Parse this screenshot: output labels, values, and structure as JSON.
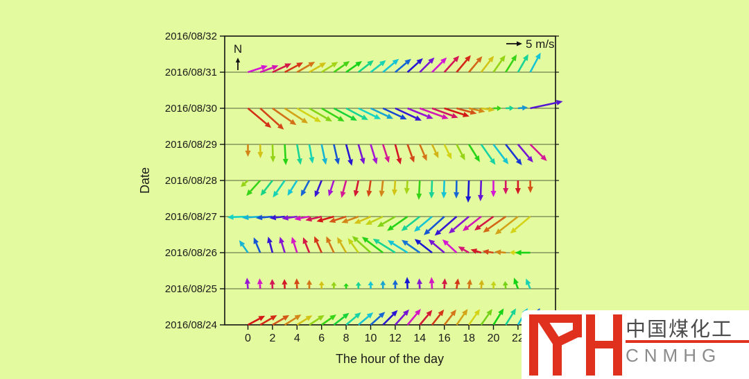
{
  "figure": {
    "background_color": "#e4fa9e",
    "frame_color": "#111111",
    "gridline_color": "#55603f",
    "text_color": "#1a1a1a",
    "x_axis": {
      "title": "The hour of the day",
      "ticks": [
        0,
        2,
        4,
        6,
        8,
        10,
        12,
        14,
        16,
        18,
        20,
        22
      ]
    },
    "y_axis": {
      "title": "Date",
      "labels": [
        "2016/08/32",
        "2016/08/31",
        "2016/08/30",
        "2016/08/29",
        "2016/08/28",
        "2016/08/27",
        "2016/08/26",
        "2016/08/25",
        "2016/08/24"
      ]
    },
    "north_label": "N",
    "legend_label": "5 m/s"
  },
  "chart_data": {
    "type": "quiver",
    "title": "",
    "xlabel": "The hour of the day",
    "ylabel": "Date",
    "x_hours": [
      0,
      23
    ],
    "legend": "arrow length scale: 5 m/s",
    "note": "each triplet is [direction_deg_ccw_from_east, length_px, hue_deg]; one arrow per hour 0-23, tail anchored on the date line",
    "rows": [
      {
        "date": "2016/08/31",
        "arrows": [
          [
            18,
            30,
            300
          ],
          [
            20,
            28,
            310
          ],
          [
            25,
            30,
            345
          ],
          [
            28,
            30,
            10
          ],
          [
            30,
            30,
            30
          ],
          [
            30,
            28,
            55
          ],
          [
            32,
            28,
            75
          ],
          [
            35,
            28,
            105
          ],
          [
            35,
            28,
            120
          ],
          [
            38,
            28,
            155
          ],
          [
            38,
            28,
            170
          ],
          [
            40,
            30,
            185
          ],
          [
            40,
            30,
            215
          ],
          [
            42,
            30,
            245
          ],
          [
            45,
            30,
            270
          ],
          [
            45,
            30,
            300
          ],
          [
            48,
            32,
            340
          ],
          [
            50,
            32,
            5
          ],
          [
            50,
            30,
            25
          ],
          [
            52,
            30,
            55
          ],
          [
            55,
            30,
            80
          ],
          [
            58,
            30,
            110
          ],
          [
            60,
            30,
            160
          ],
          [
            62,
            32,
            185
          ]
        ]
      },
      {
        "date": "2016/08/30",
        "arrows": [
          [
            320,
            44,
            8
          ],
          [
            318,
            46,
            15
          ],
          [
            325,
            42,
            28
          ],
          [
            327,
            40,
            45
          ],
          [
            330,
            40,
            60
          ],
          [
            330,
            38,
            85
          ],
          [
            330,
            38,
            110
          ],
          [
            332,
            38,
            130
          ],
          [
            332,
            36,
            160
          ],
          [
            334,
            36,
            175
          ],
          [
            335,
            36,
            195
          ],
          [
            335,
            38,
            225
          ],
          [
            335,
            42,
            250
          ],
          [
            338,
            40,
            280
          ],
          [
            340,
            44,
            310
          ],
          [
            340,
            40,
            335
          ],
          [
            342,
            38,
            0
          ],
          [
            345,
            30,
            18
          ],
          [
            348,
            24,
            35
          ],
          [
            352,
            20,
            55
          ],
          [
            0,
            12,
            110
          ],
          [
            2,
            12,
            160
          ],
          [
            5,
            14,
            200
          ],
          [
            12,
            48,
            260
          ]
        ]
      },
      {
        "date": "2016/08/29",
        "arrows": [
          [
            270,
            18,
            35
          ],
          [
            271,
            20,
            55
          ],
          [
            272,
            26,
            80
          ],
          [
            273,
            30,
            115
          ],
          [
            280,
            30,
            160
          ],
          [
            280,
            28,
            170
          ],
          [
            282,
            30,
            190
          ],
          [
            283,
            30,
            220
          ],
          [
            285,
            32,
            245
          ],
          [
            286,
            30,
            270
          ],
          [
            287,
            30,
            285
          ],
          [
            288,
            28,
            320
          ],
          [
            285,
            30,
            355
          ],
          [
            290,
            28,
            15
          ],
          [
            293,
            26,
            30
          ],
          [
            295,
            22,
            50
          ],
          [
            296,
            24,
            60
          ],
          [
            298,
            26,
            80
          ],
          [
            302,
            30,
            115
          ],
          [
            305,
            36,
            165
          ],
          [
            307,
            36,
            185
          ],
          [
            308,
            38,
            230
          ],
          [
            310,
            34,
            270
          ],
          [
            315,
            34,
            320
          ]
        ]
      },
      {
        "date": "2016/08/28",
        "arrows": [
          [
            222,
            14,
            80
          ],
          [
            228,
            30,
            110
          ],
          [
            232,
            28,
            155
          ],
          [
            235,
            30,
            170
          ],
          [
            238,
            26,
            185
          ],
          [
            242,
            26,
            215
          ],
          [
            248,
            26,
            250
          ],
          [
            252,
            24,
            285
          ],
          [
            255,
            26,
            320
          ],
          [
            258,
            24,
            350
          ],
          [
            262,
            24,
            15
          ],
          [
            264,
            24,
            35
          ],
          [
            266,
            22,
            55
          ],
          [
            266,
            20,
            75
          ],
          [
            267,
            28,
            110
          ],
          [
            268,
            26,
            160
          ],
          [
            268,
            26,
            185
          ],
          [
            269,
            26,
            215
          ],
          [
            268,
            32,
            240
          ],
          [
            268,
            30,
            265
          ],
          [
            270,
            24,
            300
          ],
          [
            270,
            20,
            335
          ],
          [
            270,
            20,
            355
          ],
          [
            271,
            18,
            20
          ]
        ]
      },
      {
        "date": "2016/08/27",
        "arrows": [
          [
            182,
            30,
            175
          ],
          [
            184,
            26,
            190
          ],
          [
            185,
            24,
            220
          ],
          [
            186,
            22,
            250
          ],
          [
            188,
            22,
            275
          ],
          [
            190,
            22,
            305
          ],
          [
            193,
            24,
            340
          ],
          [
            196,
            26,
            0
          ],
          [
            198,
            26,
            20
          ],
          [
            200,
            26,
            35
          ],
          [
            203,
            26,
            55
          ],
          [
            205,
            28,
            65
          ],
          [
            210,
            30,
            85
          ],
          [
            215,
            36,
            115
          ],
          [
            218,
            34,
            160
          ],
          [
            220,
            34,
            185
          ],
          [
            222,
            40,
            220
          ],
          [
            221,
            42,
            250
          ],
          [
            220,
            38,
            275
          ],
          [
            218,
            34,
            310
          ],
          [
            216,
            34,
            345
          ],
          [
            215,
            40,
            25
          ],
          [
            218,
            42,
            45
          ],
          [
            220,
            38,
            60
          ]
        ]
      },
      {
        "date": "2016/08/26",
        "arrows": [
          [
            125,
            22,
            190
          ],
          [
            113,
            24,
            220
          ],
          [
            105,
            24,
            250
          ],
          [
            107,
            24,
            275
          ],
          [
            108,
            24,
            305
          ],
          [
            112,
            24,
            345
          ],
          [
            114,
            26,
            10
          ],
          [
            115,
            26,
            30
          ],
          [
            120,
            26,
            50
          ],
          [
            126,
            26,
            65
          ],
          [
            138,
            36,
            85
          ],
          [
            143,
            38,
            115
          ],
          [
            148,
            38,
            160
          ],
          [
            148,
            34,
            185
          ],
          [
            145,
            32,
            210
          ],
          [
            142,
            32,
            240
          ],
          [
            140,
            30,
            270
          ],
          [
            137,
            28,
            300
          ],
          [
            150,
            18,
            330
          ],
          [
            163,
            16,
            355
          ],
          [
            172,
            16,
            15
          ],
          [
            175,
            16,
            35
          ],
          [
            178,
            12,
            60
          ],
          [
            180,
            22,
            120
          ]
        ]
      },
      {
        "date": "2016/08/25",
        "arrows": [
          [
            95,
            16,
            280
          ],
          [
            93,
            15,
            305
          ],
          [
            92,
            14,
            340
          ],
          [
            92,
            14,
            355
          ],
          [
            92,
            15,
            15
          ],
          [
            90,
            13,
            30
          ],
          [
            90,
            11,
            55
          ],
          [
            90,
            10,
            80
          ],
          [
            90,
            8,
            115
          ],
          [
            90,
            10,
            160
          ],
          [
            90,
            11,
            185
          ],
          [
            90,
            12,
            195
          ],
          [
            90,
            13,
            215
          ],
          [
            92,
            17,
            240
          ],
          [
            93,
            15,
            275
          ],
          [
            93,
            17,
            305
          ],
          [
            87,
            15,
            345
          ],
          [
            82,
            15,
            10
          ],
          [
            82,
            14,
            30
          ],
          [
            85,
            13,
            50
          ],
          [
            88,
            11,
            65
          ],
          [
            95,
            11,
            90
          ],
          [
            110,
            17,
            120
          ],
          [
            113,
            16,
            170
          ]
        ]
      },
      {
        "date": "2016/08/24",
        "arrows": [
          [
            28,
            28,
            0
          ],
          [
            30,
            28,
            5
          ],
          [
            30,
            28,
            20
          ],
          [
            32,
            28,
            35
          ],
          [
            32,
            26,
            55
          ],
          [
            33,
            26,
            80
          ],
          [
            35,
            26,
            110
          ],
          [
            38,
            28,
            130
          ],
          [
            40,
            28,
            165
          ],
          [
            40,
            28,
            185
          ],
          [
            42,
            28,
            215
          ],
          [
            45,
            30,
            245
          ],
          [
            48,
            30,
            270
          ],
          [
            50,
            30,
            305
          ],
          [
            50,
            28,
            350
          ],
          [
            52,
            28,
            10
          ],
          [
            52,
            28,
            30
          ],
          [
            55,
            28,
            45
          ],
          [
            55,
            28,
            60
          ],
          [
            55,
            28,
            90
          ],
          [
            58,
            28,
            120
          ],
          [
            58,
            28,
            160
          ],
          [
            60,
            28,
            185
          ],
          [
            60,
            28,
            215
          ]
        ]
      }
    ]
  },
  "watermark": {
    "logo_text": "IYH",
    "cn_text": "中国煤化工",
    "en_text": "CNMHG",
    "logo_color": "#e0301e",
    "cn_color": "#4b4b4b",
    "en_color": "#8b8b8b"
  }
}
